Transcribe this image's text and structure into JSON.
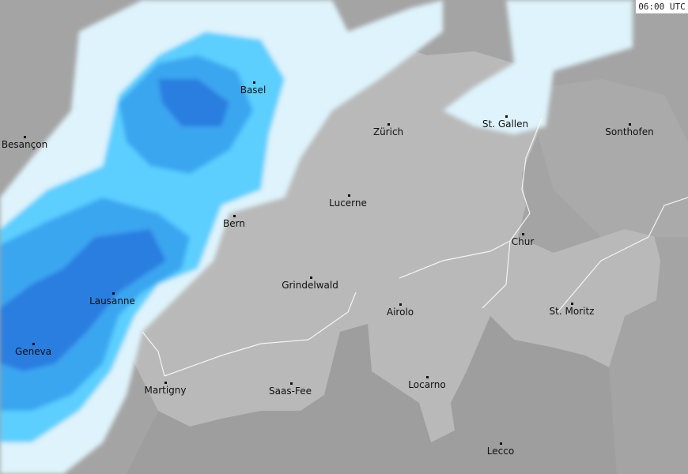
{
  "timestamp": "06:00 UTC",
  "colors": {
    "outside_land": "#a4a4a4",
    "switzerland": "#b9b9b9",
    "precip_very_light": "#def3fb",
    "precip_light": "#5ccfff",
    "precip_moderate": "#3aa6f0",
    "precip_heavy": "#2b7ee0",
    "rivers_borders": "#ffffff"
  },
  "cities": [
    {
      "name": "Basel"
    },
    {
      "name": "Besançon"
    },
    {
      "name": "Zürich"
    },
    {
      "name": "St. Gallen"
    },
    {
      "name": "Sonthofen"
    },
    {
      "name": "Lucerne"
    },
    {
      "name": "Bern"
    },
    {
      "name": "Chur"
    },
    {
      "name": "Grindelwald"
    },
    {
      "name": "Lausanne"
    },
    {
      "name": "Airolo"
    },
    {
      "name": "St. Moritz"
    },
    {
      "name": "Geneva"
    },
    {
      "name": "Martigny"
    },
    {
      "name": "Saas-Fee"
    },
    {
      "name": "Locarno"
    },
    {
      "name": "Lecco"
    }
  ]
}
